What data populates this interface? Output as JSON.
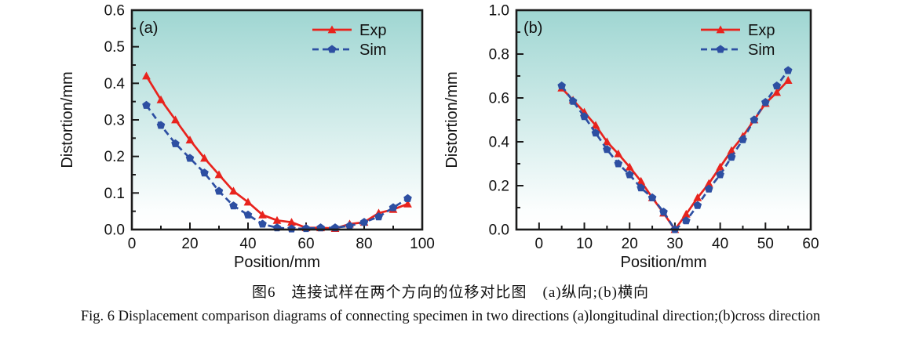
{
  "figure": {
    "caption_zh": "图6　连接试样在两个方向的位移对比图　(a)纵向;(b)横向",
    "caption_en": "Fig. 6   Displacement comparison diagrams of connecting specimen in two directions    (a)longitudinal direction;(b)cross direction"
  },
  "colors": {
    "exp": "#e8231d",
    "sim": "#2d4fa2",
    "axis": "#1a1a1a",
    "text": "#111111",
    "bg_top": "#9fd6d2",
    "bg_bottom": "#fcfefe"
  },
  "chart_data": [
    {
      "type": "line",
      "panel_label": "(a)",
      "xlabel": "Position/mm",
      "ylabel": "Distortion/mm",
      "xlim": [
        0,
        100
      ],
      "ylim": [
        0,
        0.6
      ],
      "xtick_major": 20,
      "xtick_minor": 10,
      "ytick_major": 0.1,
      "ytick_minor": 0.05,
      "legend_position": "top-right",
      "grid": false,
      "x": [
        5,
        10,
        15,
        20,
        25,
        30,
        35,
        40,
        45,
        50,
        55,
        60,
        65,
        70,
        75,
        80,
        85,
        90,
        95
      ],
      "series": [
        {
          "name": "Exp",
          "marker": "triangle",
          "line": "solid",
          "values": [
            0.42,
            0.355,
            0.3,
            0.245,
            0.195,
            0.15,
            0.105,
            0.075,
            0.04,
            0.025,
            0.02,
            0.005,
            0.005,
            0.003,
            0.015,
            0.02,
            0.045,
            0.055,
            0.07
          ]
        },
        {
          "name": "Sim",
          "marker": "pentagon",
          "line": "dashed",
          "values": [
            0.34,
            0.285,
            0.235,
            0.195,
            0.155,
            0.105,
            0.065,
            0.04,
            0.015,
            0.005,
            0.002,
            0.003,
            0.005,
            0.005,
            0.01,
            0.02,
            0.035,
            0.06,
            0.085
          ]
        }
      ]
    },
    {
      "type": "line",
      "panel_label": "(b)",
      "xlabel": "Position/mm",
      "ylabel": "Distortion/mm",
      "xlim": [
        -5,
        60
      ],
      "ylim": [
        0,
        1.0
      ],
      "xtick_major": 10,
      "xtick_minor": 5,
      "ytick_major": 0.2,
      "ytick_minor": 0.1,
      "legend_position": "top-right",
      "grid": false,
      "x": [
        5,
        7.5,
        10,
        12.5,
        15,
        17.5,
        20,
        22.5,
        25,
        27.5,
        30,
        32.5,
        35,
        37.5,
        40,
        42.5,
        45,
        47.5,
        50,
        52.5,
        55
      ],
      "series": [
        {
          "name": "Exp",
          "marker": "triangle",
          "line": "solid",
          "values": [
            0.645,
            0.59,
            0.535,
            0.475,
            0.4,
            0.345,
            0.285,
            0.22,
            0.145,
            0.075,
            0.0,
            0.07,
            0.145,
            0.21,
            0.285,
            0.36,
            0.425,
            0.5,
            0.575,
            0.625,
            0.68
          ]
        },
        {
          "name": "Sim",
          "marker": "pentagon",
          "line": "dashed",
          "values": [
            0.655,
            0.585,
            0.515,
            0.44,
            0.365,
            0.3,
            0.25,
            0.19,
            0.145,
            0.08,
            0.0,
            0.04,
            0.11,
            0.185,
            0.25,
            0.33,
            0.41,
            0.5,
            0.58,
            0.655,
            0.725
          ]
        }
      ]
    }
  ]
}
